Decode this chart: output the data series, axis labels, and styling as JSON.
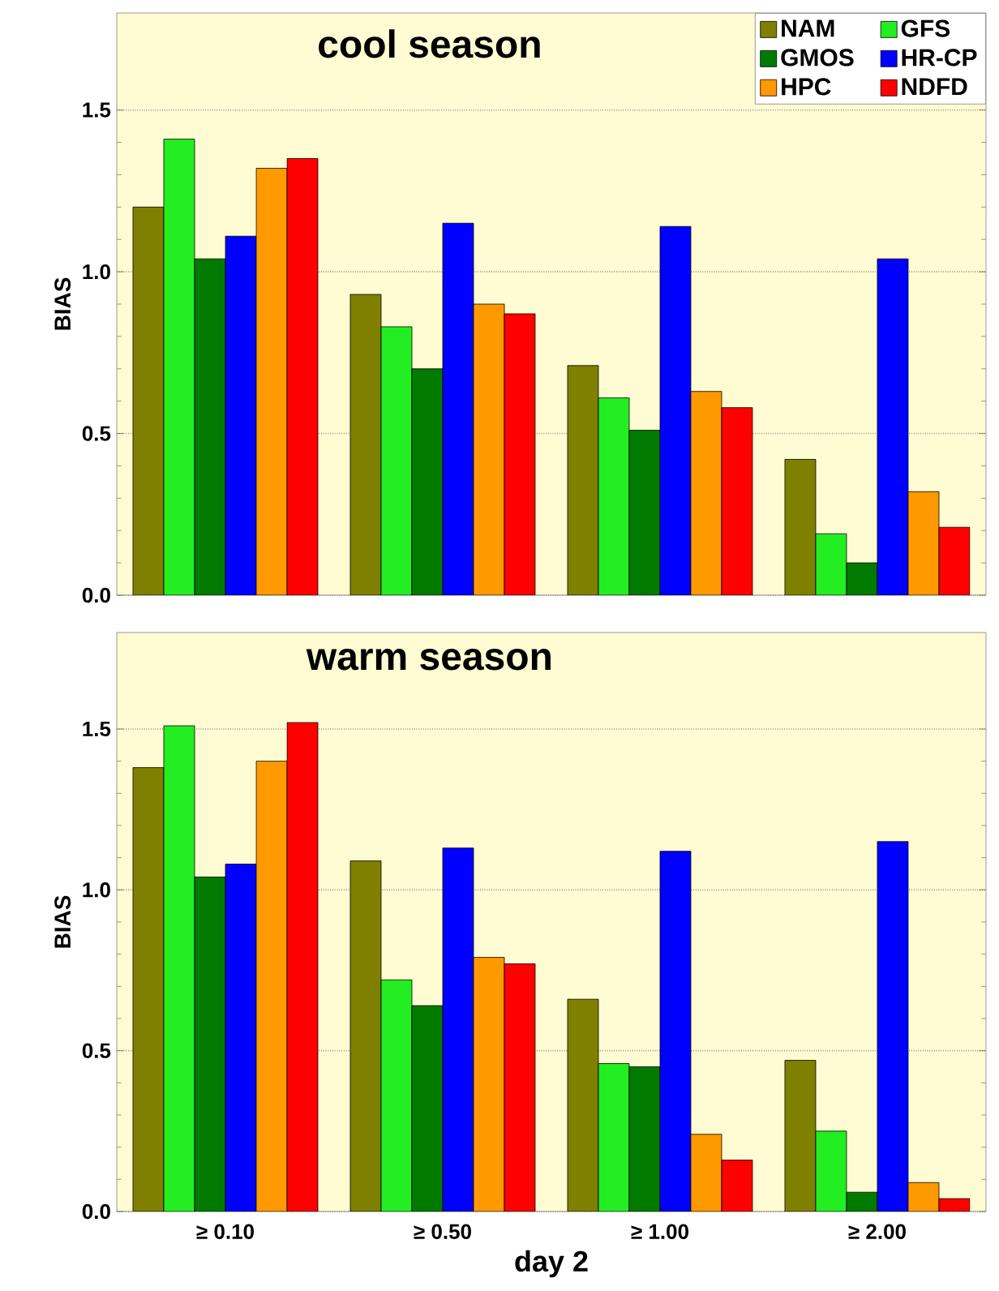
{
  "chart_data": [
    {
      "type": "bar",
      "title": "cool season",
      "ylabel": "BIAS",
      "categories": [
        null,
        null,
        null,
        null
      ],
      "ylim": [
        0,
        1.8
      ],
      "yticks": [
        {
          "value": 0,
          "label": "0.0"
        },
        {
          "value": 0.5,
          "label": "0.5"
        },
        {
          "value": 1,
          "label": "1.0"
        },
        {
          "value": 1.5,
          "label": "1.5"
        }
      ],
      "grid": "y",
      "legend": "top right",
      "series": [
        {
          "name": "NAM",
          "color": "#808000",
          "values": [
            1.2,
            0.93,
            0.71,
            0.42
          ]
        },
        {
          "name": "GFS",
          "color": "#22ee22",
          "values": [
            1.41,
            0.83,
            0.61,
            0.19
          ]
        },
        {
          "name": "GMOS",
          "color": "#007a00",
          "values": [
            1.04,
            0.7,
            0.51,
            0.1
          ]
        },
        {
          "name": "HR-CP",
          "color": "#0000ff",
          "values": [
            1.11,
            1.15,
            1.14,
            1.04
          ]
        },
        {
          "name": "HPC",
          "color": "#ff9900",
          "values": [
            1.32,
            0.9,
            0.63,
            0.32
          ]
        },
        {
          "name": "NDFD",
          "color": "#ff0000",
          "values": [
            1.35,
            0.87,
            0.58,
            0.21
          ]
        }
      ]
    },
    {
      "type": "bar",
      "title": "warm season",
      "ylabel": "BIAS",
      "xlabel": "day 2",
      "categories": [
        "≥ 0.10",
        "≥ 0.50",
        "≥ 1.00",
        "≥ 2.00"
      ],
      "ylim": [
        0,
        1.8
      ],
      "yticks": [
        {
          "value": 0,
          "label": "0.0"
        },
        {
          "value": 0.5,
          "label": "0.5"
        },
        {
          "value": 1,
          "label": "1.0"
        },
        {
          "value": 1.5,
          "label": "1.5"
        }
      ],
      "grid": "y",
      "series": [
        {
          "color": "#808000",
          "values": [
            1.38,
            1.09,
            0.66,
            0.47
          ]
        },
        {
          "color": "#22ee22",
          "values": [
            1.51,
            0.72,
            0.46,
            0.25
          ]
        },
        {
          "color": "#007a00",
          "values": [
            1.04,
            0.64,
            0.45,
            0.06
          ]
        },
        {
          "color": "#0000ff",
          "values": [
            1.08,
            1.13,
            1.12,
            1.15
          ]
        },
        {
          "color": "#ff9900",
          "values": [
            1.4,
            0.79,
            0.24,
            0.09
          ]
        },
        {
          "color": "#ff0000",
          "values": [
            1.52,
            0.77,
            0.16,
            0.04
          ]
        }
      ]
    }
  ]
}
